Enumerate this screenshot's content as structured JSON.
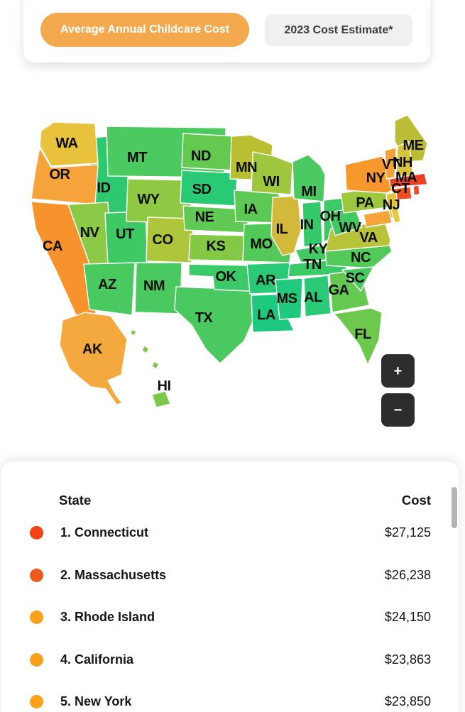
{
  "toolbar": {
    "active_button": "Average Annual Childcare Cost",
    "inactive_button": "2023 Cost Estimate*",
    "active_color": "#f5a94f",
    "inactive_color": "#f0f0f1"
  },
  "map": {
    "zoom_in_label": "+",
    "zoom_out_label": "−",
    "states": [
      {
        "abbr": "ID",
        "label": "ID",
        "color": "#2ec96e"
      },
      {
        "abbr": "MT",
        "label": "MT",
        "color": "#4cc95f"
      },
      {
        "abbr": "WA",
        "label": "WA",
        "color": "#e8c23d"
      },
      {
        "abbr": "OR",
        "label": "OR",
        "color": "#f7a33b"
      },
      {
        "abbr": "CA",
        "label": "CA",
        "color": "#f6932d"
      },
      {
        "abbr": "NV",
        "label": "NV",
        "color": "#8cc946"
      },
      {
        "abbr": "UT",
        "label": "UT",
        "color": "#3fc965"
      },
      {
        "abbr": "WY",
        "label": "WY",
        "color": "#8fc944"
      },
      {
        "abbr": "CO",
        "label": "CO",
        "color": "#aec63c"
      },
      {
        "abbr": "AZ",
        "label": "AZ",
        "color": "#49c95f"
      },
      {
        "abbr": "NM",
        "label": "NM",
        "color": "#49c95f"
      },
      {
        "abbr": "ND",
        "label": "ND",
        "color": "#63c950"
      },
      {
        "abbr": "SD",
        "label": "SD",
        "color": "#29c975"
      },
      {
        "abbr": "NE",
        "label": "NE",
        "color": "#5fc953"
      },
      {
        "abbr": "KS",
        "label": "KS",
        "color": "#84c946"
      },
      {
        "abbr": "TX",
        "label": "TX",
        "color": "#49c95f"
      },
      {
        "abbr": "OK",
        "label": "OK",
        "color": "#3cc968"
      },
      {
        "abbr": "MN",
        "label": "MN",
        "color": "#b9be33"
      },
      {
        "abbr": "IA",
        "label": "IA",
        "color": "#5cc954"
      },
      {
        "abbr": "MO",
        "label": "MO",
        "color": "#52c959"
      },
      {
        "abbr": "AR",
        "label": "AR",
        "color": "#29c975"
      },
      {
        "abbr": "LA",
        "label": "LA",
        "color": "#1dc97f"
      },
      {
        "abbr": "WI",
        "label": "WI",
        "color": "#9fc73e"
      },
      {
        "abbr": "IL",
        "label": "IL",
        "color": "#d2b93a"
      },
      {
        "abbr": "MI",
        "label": "MI",
        "color": "#49c95f"
      },
      {
        "abbr": "IN",
        "label": "IN",
        "color": "#35c96a"
      },
      {
        "abbr": "OH",
        "label": "OH",
        "color": "#3cc968"
      },
      {
        "abbr": "KY",
        "label": "KY",
        "color": "#43c962"
      },
      {
        "abbr": "TN",
        "label": "TN",
        "color": "#3cc968"
      },
      {
        "abbr": "MS",
        "label": "MS",
        "color": "#20c97b"
      },
      {
        "abbr": "AL",
        "label": "AL",
        "color": "#29c975"
      },
      {
        "abbr": "GA",
        "label": "GA",
        "color": "#63c950"
      },
      {
        "abbr": "FL",
        "label": "FL",
        "color": "#6cc94d"
      },
      {
        "abbr": "NC",
        "label": "NC",
        "color": "#52c959"
      },
      {
        "abbr": "SC",
        "label": "SC",
        "color": "#49c95f"
      },
      {
        "abbr": "VA",
        "label": "VA",
        "color": "#b8c339"
      },
      {
        "abbr": "WV",
        "label": "WV",
        "color": "#43c962"
      },
      {
        "abbr": "PA",
        "label": "PA",
        "color": "#9dc73e"
      },
      {
        "abbr": "NY",
        "label": "NY",
        "color": "#f7982f"
      },
      {
        "abbr": "ME",
        "label": "ME",
        "color": "#bcbd36"
      },
      {
        "abbr": "VT",
        "label": "VT",
        "color": "#f4a338"
      },
      {
        "abbr": "NH",
        "label": "NH",
        "color": "#d8c13c"
      },
      {
        "abbr": "MA",
        "label": "MA",
        "color": "#ef4023"
      },
      {
        "abbr": "CT",
        "label": "CT",
        "color": "#f04e1f"
      },
      {
        "abbr": "RI",
        "label": "",
        "color": "#ef4b2a"
      },
      {
        "abbr": "NJ",
        "label": "NJ",
        "color": "#e5c33b"
      },
      {
        "abbr": "MD",
        "label": "",
        "color": "#f4a43a"
      },
      {
        "abbr": "DE",
        "label": "",
        "color": "#e8c93e"
      },
      {
        "abbr": "AK",
        "label": "AK",
        "color": "#f3a93d"
      },
      {
        "abbr": "HI",
        "label": "HI",
        "color": "#7cc949"
      }
    ]
  },
  "table": {
    "headers": [
      "State",
      "Cost"
    ],
    "rows": [
      {
        "rank": "1",
        "state": "Connecticut",
        "label": "1. Connecticut",
        "cost": "$27,125",
        "dot_color": "#f04316"
      },
      {
        "rank": "2",
        "state": "Massachusetts",
        "label": "2. Massachusetts",
        "cost": "$26,238",
        "dot_color": "#ee5a1d"
      },
      {
        "rank": "3",
        "state": "Rhode Island",
        "label": "3. Rhode Island",
        "cost": "$24,150",
        "dot_color": "#f9a11d"
      },
      {
        "rank": "4",
        "state": "California",
        "label": "4. California",
        "cost": "$23,863",
        "dot_color": "#f9a11d"
      },
      {
        "rank": "5",
        "state": "New York",
        "label": "5. New York",
        "cost": "$23,850",
        "dot_color": "#f9a11d"
      }
    ]
  },
  "chart_data": {
    "type": "heatmap",
    "subtype": "us-choropleth",
    "title": "Average Annual Childcare Cost",
    "note": "2023 Cost Estimate*",
    "legend_position": "none",
    "color_scale_hint": "green = low cost, yellow/gold = mid, orange/red = high cost",
    "top_states": [
      {
        "rank": 1,
        "state": "Connecticut",
        "cost_usd": 27125
      },
      {
        "rank": 2,
        "state": "Massachusetts",
        "cost_usd": 26238
      },
      {
        "rank": 3,
        "state": "Rhode Island",
        "cost_usd": 24150
      },
      {
        "rank": 4,
        "state": "California",
        "cost_usd": 23863
      },
      {
        "rank": 5,
        "state": "New York",
        "cost_usd": 23850
      }
    ],
    "state_colors": {
      "WA": "#e8c23d",
      "OR": "#f7a33b",
      "CA": "#f6932d",
      "ID": "#2ec96e",
      "MT": "#4cc95f",
      "NV": "#8cc946",
      "UT": "#3fc965",
      "WY": "#8fc944",
      "CO": "#aec63c",
      "AZ": "#49c95f",
      "NM": "#49c95f",
      "ND": "#63c950",
      "SD": "#29c975",
      "NE": "#5fc953",
      "KS": "#84c946",
      "OK": "#3cc968",
      "TX": "#49c95f",
      "MN": "#b9be33",
      "IA": "#5cc954",
      "MO": "#52c959",
      "AR": "#29c975",
      "LA": "#1dc97f",
      "WI": "#9fc73e",
      "IL": "#d2b93a",
      "MI": "#49c95f",
      "IN": "#35c96a",
      "OH": "#3cc968",
      "KY": "#43c962",
      "TN": "#3cc968",
      "MS": "#20c97b",
      "AL": "#29c975",
      "GA": "#63c950",
      "FL": "#6cc94d",
      "NC": "#52c959",
      "SC": "#49c95f",
      "VA": "#b8c339",
      "WV": "#43c962",
      "PA": "#9dc73e",
      "NY": "#f7982f",
      "ME": "#bcbd36",
      "VT": "#f4a338",
      "NH": "#d8c13c",
      "MA": "#ef4023",
      "CT": "#f04e1f",
      "RI": "#ef4b2a",
      "NJ": "#e5c33b",
      "MD": "#f4a43a",
      "DE": "#e8c93e",
      "AK": "#f3a93d",
      "HI": "#7cc949"
    }
  }
}
